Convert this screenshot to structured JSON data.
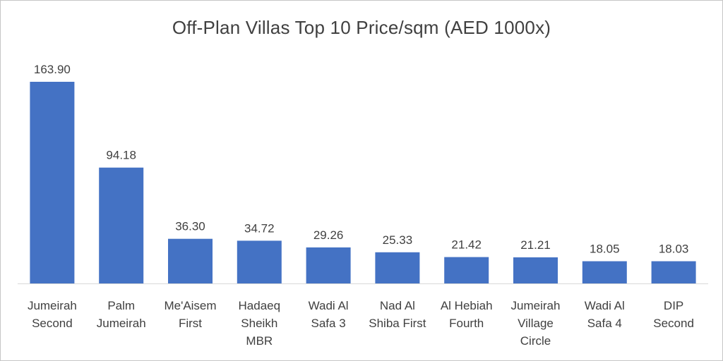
{
  "chart_data": {
    "type": "bar",
    "title": "Off-Plan Villas Top 10 Price/sqm  (AED 1000x)",
    "categories": [
      [
        "Jumeirah",
        "Second"
      ],
      [
        "Palm",
        "Jumeirah"
      ],
      [
        "Me'Aisem",
        "First"
      ],
      [
        "Hadaeq",
        "Sheikh",
        "MBR"
      ],
      [
        "Wadi Al",
        "Safa 3"
      ],
      [
        "Nad Al",
        "Shiba First"
      ],
      [
        "Al Hebiah",
        "Fourth"
      ],
      [
        "Jumeirah",
        "Village",
        "Circle"
      ],
      [
        "Wadi Al",
        "Safa 4"
      ],
      [
        "DIP",
        "Second"
      ]
    ],
    "values": [
      163.9,
      94.18,
      36.3,
      34.72,
      29.26,
      25.33,
      21.42,
      21.21,
      18.05,
      18.03
    ],
    "value_labels": [
      "163.90",
      "94.18",
      "36.30",
      "34.72",
      "29.26",
      "25.33",
      "21.42",
      "21.21",
      "18.05",
      "18.03"
    ],
    "xlabel": "",
    "ylabel": "",
    "ylim": [
      0,
      163.9
    ],
    "grid": false,
    "legend": "none",
    "bar_color": "#4472C4",
    "text_color": "#404040",
    "axis_color": "#d9d9d9"
  }
}
